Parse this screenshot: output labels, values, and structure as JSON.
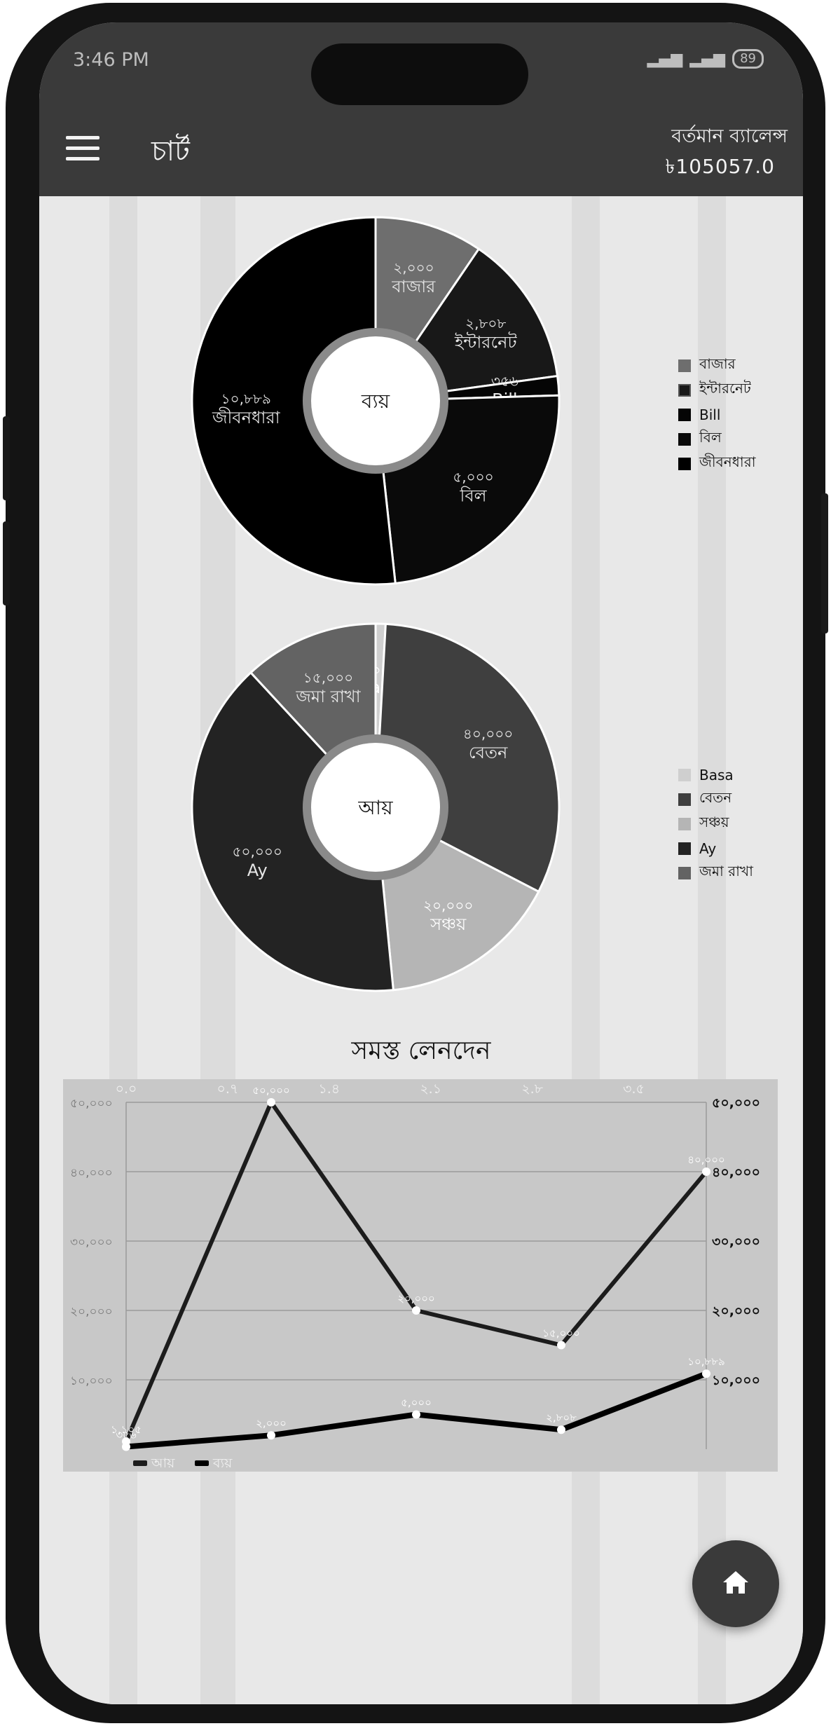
{
  "status_bar": {
    "time": "3:46 PM",
    "battery": "89"
  },
  "app_bar": {
    "title": "চার্ট",
    "balance_label": "বর্তমান ব্যালেন্স",
    "balance_value": "৳105057.0"
  },
  "expense_chart": {
    "center_label": "ব্যয়",
    "legend": [
      "বাজার",
      "ইন্টারনেট",
      "Bill",
      "বিল",
      "জীবনধারা"
    ],
    "slices": [
      {
        "label": "বাজার",
        "value_text": "২,০০০",
        "value": 2000,
        "color": "#6e6e6e"
      },
      {
        "label": "ইন্টারনেট",
        "value_text": "২,৮০৮",
        "value": 2808,
        "color": "#181818"
      },
      {
        "label": "Bill",
        "value_text": "৩৫৬",
        "value": 356,
        "color": "#050505"
      },
      {
        "label": "বিল",
        "value_text": "৫,০০০",
        "value": 5000,
        "color": "#0a0a0a"
      },
      {
        "label": "জীবনধারা",
        "value_text": "১০,৮৮৯",
        "value": 10889,
        "color": "#000000"
      }
    ]
  },
  "income_chart": {
    "center_label": "আয়",
    "legend": [
      "Basa",
      "বেতন",
      "সঞ্চয়",
      "Ay",
      "জমা রাখা"
    ],
    "slices": [
      {
        "label": "Basa",
        "value_text": "১,১০৫",
        "value": 1105,
        "color": "#cfcfcf"
      },
      {
        "label": "বেতন",
        "value_text": "৪০,০০০",
        "value": 40000,
        "color": "#3f3f3f"
      },
      {
        "label": "সঞ্চয়",
        "value_text": "২০,০০০",
        "value": 20000,
        "color": "#b5b5b5"
      },
      {
        "label": "Ay",
        "value_text": "৫০,০০০",
        "value": 50000,
        "color": "#232323"
      },
      {
        "label": "জমা রাখা",
        "value_text": "১৫,০০০",
        "value": 15000,
        "color": "#636363"
      }
    ]
  },
  "line_chart_title": "সমস্ত লেনদেন",
  "chart_data": {
    "type": "line",
    "x_ticks": [
      "০.০",
      "০.৭",
      "১.৪",
      "২.১",
      "২.৮",
      "৩.৫"
    ],
    "y_ticks": [
      "৫০,০০০",
      "৪০,০০০",
      "৩০,০০০",
      "২০,০০০",
      "১০,০০০"
    ],
    "y_ticks_right": [
      "৫০,০০০",
      "৪০,০০০",
      "৩০,০০০",
      "২০,০০০",
      "১০,০০০"
    ],
    "xlim": [
      0,
      4
    ],
    "ylim": [
      0,
      50000
    ],
    "series": [
      {
        "name": "আয়",
        "x": [
          0,
          1,
          2,
          3,
          4
        ],
        "values": [
          1105,
          50000,
          20000,
          15000,
          40000
        ],
        "labels": [
          "১,১০৫",
          "৫০,০০০",
          "২০,০০০",
          "১৫,০০০",
          "৪০,০০০"
        ],
        "color": "#1c1c1c"
      },
      {
        "name": "ব্যয়",
        "x": [
          0,
          1,
          2,
          3,
          4
        ],
        "values": [
          356,
          2000,
          5000,
          2808,
          10889
        ],
        "labels": [
          "৩৫৬",
          "২,০০০",
          "৫,০০০",
          "২,৮০৮",
          "১০,৮৮৯"
        ],
        "color": "#000000"
      }
    ]
  },
  "fab": {
    "icon": "home-icon"
  }
}
